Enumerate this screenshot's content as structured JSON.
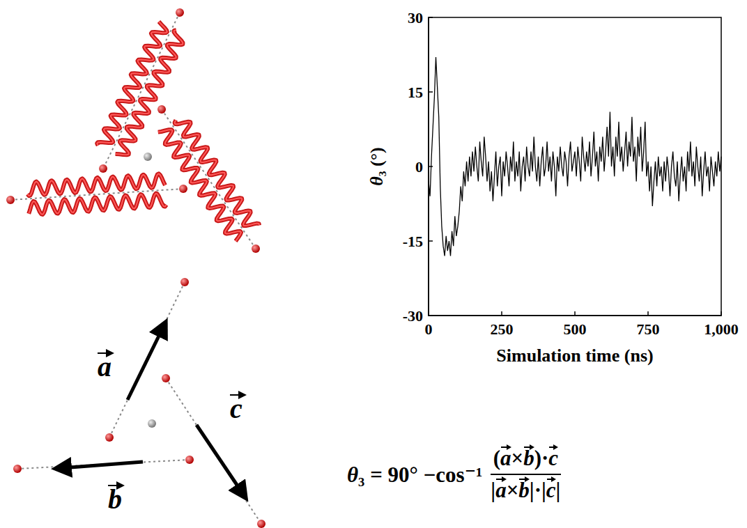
{
  "chart_data": {
    "type": "line",
    "color": "#000000",
    "xlabel": "Simulation time (ns)",
    "ylabel": "θ₃ (°)",
    "xlim": [
      0,
      1000
    ],
    "xticks": [
      0,
      250,
      500,
      750,
      1000
    ],
    "ylim": [
      -30,
      30
    ],
    "yticks": [
      -30,
      -15,
      0,
      15,
      30
    ],
    "grid": false,
    "x": [
      0,
      5,
      10,
      15,
      20,
      25,
      30,
      35,
      40,
      45,
      50,
      55,
      60,
      65,
      70,
      75,
      80,
      85,
      90,
      95,
      100,
      105,
      110,
      115,
      120,
      125,
      130,
      135,
      140,
      145,
      150,
      155,
      160,
      165,
      170,
      175,
      180,
      185,
      190,
      195,
      200,
      205,
      210,
      215,
      220,
      225,
      230,
      235,
      240,
      245,
      250,
      255,
      260,
      265,
      270,
      275,
      280,
      285,
      290,
      295,
      300,
      305,
      310,
      315,
      320,
      325,
      330,
      335,
      340,
      345,
      350,
      355,
      360,
      365,
      370,
      375,
      380,
      385,
      390,
      395,
      400,
      405,
      410,
      415,
      420,
      425,
      430,
      435,
      440,
      445,
      450,
      455,
      460,
      465,
      470,
      475,
      480,
      485,
      490,
      495,
      500,
      505,
      510,
      515,
      520,
      525,
      530,
      535,
      540,
      545,
      550,
      555,
      560,
      565,
      570,
      575,
      580,
      585,
      590,
      595,
      600,
      605,
      610,
      615,
      620,
      625,
      630,
      635,
      640,
      645,
      650,
      655,
      660,
      665,
      670,
      675,
      680,
      685,
      690,
      695,
      700,
      705,
      710,
      715,
      720,
      725,
      730,
      735,
      740,
      745,
      750,
      755,
      760,
      765,
      770,
      775,
      780,
      785,
      790,
      795,
      800,
      805,
      810,
      815,
      820,
      825,
      830,
      835,
      840,
      845,
      850,
      855,
      860,
      865,
      870,
      875,
      880,
      885,
      890,
      895,
      900,
      905,
      910,
      915,
      920,
      925,
      930,
      935,
      940,
      945,
      950,
      955,
      960,
      965,
      970,
      975,
      980,
      985,
      990,
      995,
      1000
    ],
    "values": [
      -3,
      -6,
      2,
      8,
      14,
      22,
      16,
      10,
      -4,
      -12,
      -16,
      -18,
      -14,
      -17,
      -15,
      -18,
      -13,
      -16,
      -10,
      -14,
      -12,
      -9,
      -4,
      -7,
      -1,
      -4,
      1,
      -3,
      2,
      -2,
      3,
      -1,
      4,
      0,
      -3,
      5,
      1,
      -2,
      6,
      2,
      -3,
      1,
      -5,
      -1,
      -7,
      -2,
      3,
      -4,
      0,
      2,
      -6,
      1,
      -2,
      3,
      0,
      -4,
      2,
      -1,
      5,
      -3,
      1,
      -2,
      3,
      -5,
      0,
      2,
      -3,
      4,
      0,
      -2,
      3,
      -1,
      6,
      0,
      -3,
      2,
      -4,
      1,
      4,
      -2,
      0,
      5,
      -1,
      2,
      -3,
      3,
      0,
      -6,
      2,
      -1,
      4,
      0,
      -2,
      3,
      1,
      -4,
      2,
      5,
      -1,
      1,
      3,
      -2,
      4,
      1,
      -3,
      6,
      2,
      -1,
      3,
      0,
      5,
      -2,
      2,
      7,
      0,
      3,
      -3,
      4,
      1,
      6,
      -1,
      3,
      8,
      2,
      11,
      0,
      4,
      -2,
      6,
      2,
      9,
      1,
      4,
      -1,
      3,
      7,
      0,
      5,
      2,
      10,
      1,
      4,
      -3,
      6,
      2,
      8,
      -1,
      3,
      9,
      -2,
      1,
      -5,
      0,
      -8,
      -3,
      1,
      -4,
      2,
      -2,
      0,
      -5,
      1,
      -3,
      2,
      -1,
      -6,
      0,
      3,
      -2,
      -4,
      1,
      -7,
      -2,
      2,
      -3,
      0,
      -5,
      3,
      -1,
      5,
      -2,
      1,
      -4,
      4,
      0,
      -3,
      2,
      -6,
      -1,
      3,
      -2,
      0,
      -5,
      2,
      -1,
      -4,
      1,
      -2,
      3,
      -1,
      2
    ]
  },
  "diagram": {
    "vectors": [
      "a",
      "b",
      "c"
    ]
  },
  "formula": {
    "lhs": "θ₃ = 90° −cos⁻¹",
    "numerator": "(a×b)·c",
    "denominator": "|a×b|·|c|"
  }
}
